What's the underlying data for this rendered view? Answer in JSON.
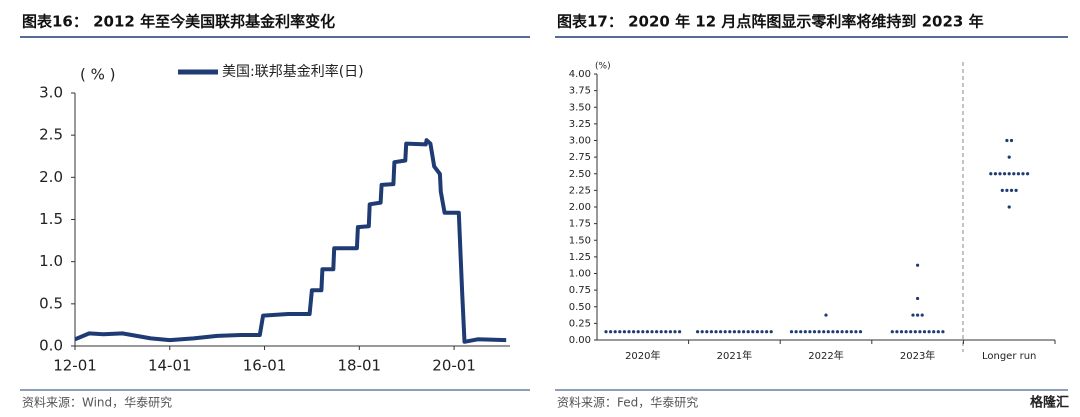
{
  "chart_data": [
    {
      "type": "line",
      "title": "图表16：  2012 年至今美国联邦基金利率变化",
      "y_label": "( % )",
      "source": "资料来源：Wind，华泰研究",
      "xlim": [
        2012,
        2021.18
      ],
      "xticks": [
        {
          "value": 2012,
          "label": "12-01"
        },
        {
          "value": 2014,
          "label": "14-01"
        },
        {
          "value": 2016,
          "label": "16-01"
        },
        {
          "value": 2018,
          "label": "18-01"
        },
        {
          "value": 2020,
          "label": "20-01"
        }
      ],
      "ylim": [
        0,
        3
      ],
      "yticks": [
        {
          "value": 0,
          "label": "0.0"
        },
        0.5,
        {
          "value": 1,
          "label": "1.0"
        },
        1.5,
        {
          "value": 2,
          "label": "2.0"
        },
        2.5,
        {
          "value": 3,
          "label": "3.0"
        }
      ],
      "x": [
        2012.0,
        2012.3,
        2012.6,
        2013.0,
        2013.3,
        2013.6,
        2014.0,
        2014.5,
        2015.0,
        2015.5,
        2015.9,
        2015.97,
        2016.5,
        2016.95,
        2017.0,
        2017.2,
        2017.22,
        2017.45,
        2017.47,
        2017.95,
        2017.97,
        2018.2,
        2018.22,
        2018.45,
        2018.47,
        2018.72,
        2018.74,
        2018.97,
        2018.99,
        2019.4,
        2019.42,
        2019.5,
        2019.58,
        2019.7,
        2019.72,
        2019.8,
        2020.1,
        2020.17,
        2020.22,
        2020.5,
        2021.1
      ],
      "series": [
        {
          "name": "美国:联邦基金利率(日)",
          "color": "#1f3b73",
          "values": [
            0.08,
            0.15,
            0.14,
            0.15,
            0.12,
            0.09,
            0.07,
            0.09,
            0.12,
            0.13,
            0.13,
            0.36,
            0.38,
            0.38,
            0.66,
            0.66,
            0.91,
            0.91,
            1.16,
            1.16,
            1.41,
            1.42,
            1.68,
            1.7,
            1.91,
            1.92,
            2.18,
            2.2,
            2.4,
            2.39,
            2.44,
            2.4,
            2.13,
            2.04,
            1.83,
            1.58,
            1.58,
            0.65,
            0.05,
            0.08,
            0.07
          ]
        }
      ]
    },
    {
      "type": "dot",
      "title": "图表17：  2020 年 12 月点阵图显示零利率将维持到 2023 年",
      "y_label": "(%)",
      "source": "资料来源：Fed，华泰研究",
      "color": "#1f3b73",
      "ylim": [
        0,
        4
      ],
      "yticks": [
        {
          "value": 0,
          "label": "0.00"
        },
        0.25,
        {
          "value": 0.5,
          "label": "0.50"
        },
        0.75,
        {
          "value": 1,
          "label": "1.00"
        },
        1.25,
        {
          "value": 1.5,
          "label": "1.50"
        },
        1.75,
        {
          "value": 2,
          "label": "2.00"
        },
        2.25,
        {
          "value": 2.5,
          "label": "2.50"
        },
        2.75,
        {
          "value": 3,
          "label": "3.00"
        },
        3.25,
        {
          "value": 3.5,
          "label": "3.50"
        },
        3.75,
        {
          "value": 4,
          "label": "4.00"
        }
      ],
      "categories": [
        "2020年",
        "2021年",
        "2022年",
        "2023年",
        "Longer run"
      ],
      "values": [
        [
          0.125,
          0.125,
          0.125,
          0.125,
          0.125,
          0.125,
          0.125,
          0.125,
          0.125,
          0.125,
          0.125,
          0.125,
          0.125,
          0.125,
          0.125,
          0.125,
          0.125
        ],
        [
          0.125,
          0.125,
          0.125,
          0.125,
          0.125,
          0.125,
          0.125,
          0.125,
          0.125,
          0.125,
          0.125,
          0.125,
          0.125,
          0.125,
          0.125,
          0.125,
          0.125
        ],
        [
          0.125,
          0.125,
          0.125,
          0.125,
          0.125,
          0.125,
          0.125,
          0.125,
          0.125,
          0.125,
          0.125,
          0.125,
          0.125,
          0.125,
          0.125,
          0.125,
          0.375
        ],
        [
          0.125,
          0.125,
          0.125,
          0.125,
          0.125,
          0.125,
          0.125,
          0.125,
          0.125,
          0.125,
          0.125,
          0.125,
          0.375,
          0.375,
          0.375,
          0.625,
          1.125
        ],
        [
          2.0,
          2.25,
          2.25,
          2.25,
          2.25,
          2.5,
          2.5,
          2.5,
          2.5,
          2.5,
          2.5,
          2.5,
          2.5,
          2.5,
          2.75,
          3.0,
          3.0
        ]
      ]
    }
  ],
  "watermark": "格隆汇"
}
